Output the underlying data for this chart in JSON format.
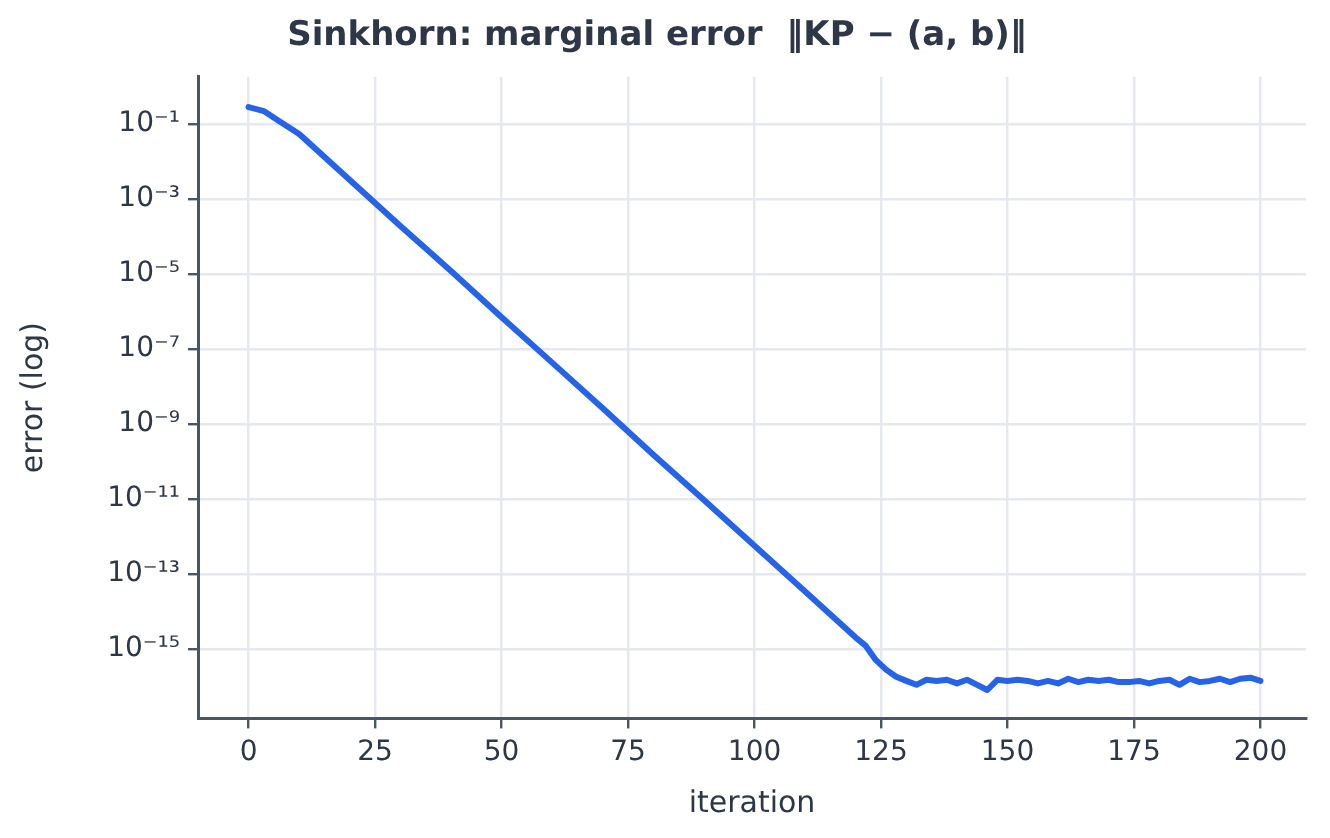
{
  "chart_data": {
    "type": "line",
    "title": "Sinkhorn: marginal error  ‖KP − (a, b)‖",
    "xlabel": "iteration",
    "ylabel": "error (log)",
    "log": "y",
    "grid": true,
    "legend": false,
    "marker": "none",
    "line_style": "solid",
    "x": [
      0,
      3,
      6,
      10,
      20,
      30,
      40,
      50,
      60,
      70,
      80,
      90,
      100,
      110,
      120,
      122,
      124,
      126,
      128,
      130,
      132,
      134,
      136,
      138,
      140,
      142,
      144,
      146,
      148,
      150,
      152,
      154,
      156,
      158,
      160,
      162,
      164,
      166,
      168,
      170,
      172,
      174,
      176,
      178,
      180,
      182,
      184,
      186,
      188,
      190,
      192,
      194,
      196,
      198,
      200
    ],
    "xlim": [
      -10,
      209
    ],
    "xticks": [
      0,
      25,
      50,
      75,
      100,
      125,
      150,
      175,
      200
    ],
    "ylim": [
      1.4e-17,
      1.8
    ],
    "yticks": [
      {
        "value": 0.1,
        "label": "10⁻¹"
      },
      {
        "value": 0.001,
        "label": "10⁻³"
      },
      {
        "value": 1e-05,
        "label": "10⁻⁵"
      },
      {
        "value": 1e-07,
        "label": "10⁻⁷"
      },
      {
        "value": 1e-09,
        "label": "10⁻⁹"
      },
      {
        "value": 1e-11,
        "label": "10⁻¹¹"
      },
      {
        "value": 1e-13,
        "label": "10⁻¹³"
      },
      {
        "value": 1e-15,
        "label": "10⁻¹⁵"
      }
    ],
    "series": [
      {
        "color": "#2563eb",
        "values": [
          0.28,
          0.22,
          0.12,
          0.054,
          0.0032,
          0.00019,
          1.2e-05,
          7e-07,
          4.3e-08,
          2.6e-09,
          1.5e-10,
          9.3e-12,
          5.6e-13,
          3.4e-14,
          2e-15,
          1.2e-15,
          5e-16,
          2.8e-16,
          1.8e-16,
          1.4e-16,
          1.1e-16,
          1.5e-16,
          1.4e-16,
          1.5e-16,
          1.2e-16,
          1.5e-16,
          1.1e-16,
          8e-17,
          1.5e-16,
          1.4e-16,
          1.5e-16,
          1.4e-16,
          1.2e-16,
          1.4e-16,
          1.2e-16,
          1.6e-16,
          1.3e-16,
          1.5e-16,
          1.4e-16,
          1.5e-16,
          1.3e-16,
          1.3e-16,
          1.4e-16,
          1.2e-16,
          1.4e-16,
          1.5e-16,
          1.1e-16,
          1.6e-16,
          1.3e-16,
          1.4e-16,
          1.6e-16,
          1.3e-16,
          1.6e-16,
          1.7e-16,
          1.4e-16
        ]
      }
    ]
  }
}
